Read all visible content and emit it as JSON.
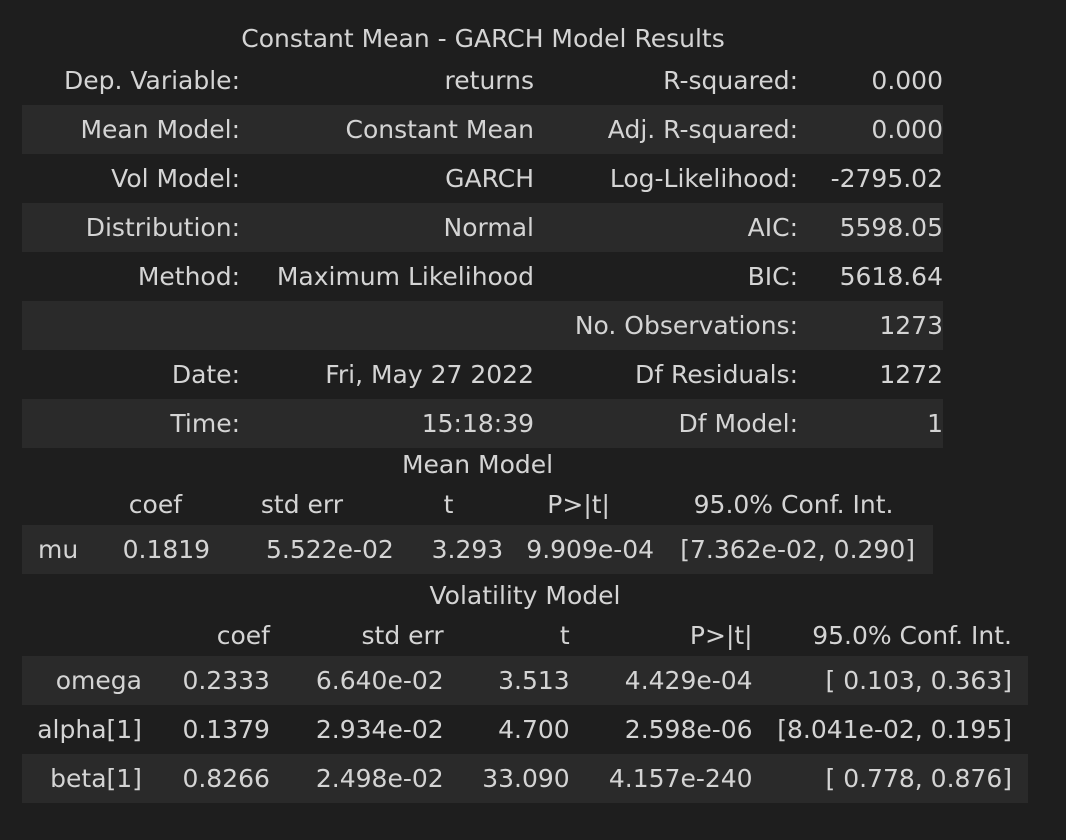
{
  "title": "Constant Mean - GARCH Model Results",
  "summary": {
    "rows": [
      {
        "k1": "Dep. Variable:",
        "v1": "returns",
        "k2": "R-squared:",
        "v2": "0.000"
      },
      {
        "k1": "Mean Model:",
        "v1": "Constant Mean",
        "k2": "Adj. R-squared:",
        "v2": "0.000"
      },
      {
        "k1": "Vol Model:",
        "v1": "GARCH",
        "k2": "Log-Likelihood:",
        "v2": "-2795.02"
      },
      {
        "k1": "Distribution:",
        "v1": "Normal",
        "k2": "AIC:",
        "v2": "5598.05"
      },
      {
        "k1": "Method:",
        "v1": "Maximum Likelihood",
        "k2": "BIC:",
        "v2": "5618.64"
      },
      {
        "k1": "",
        "v1": "",
        "k2": "No. Observations:",
        "v2": "1273"
      },
      {
        "k1": "Date:",
        "v1": "Fri, May 27 2022",
        "k2": "Df Residuals:",
        "v2": "1272"
      },
      {
        "k1": "Time:",
        "v1": "15:18:39",
        "k2": "Df Model:",
        "v2": "1"
      }
    ]
  },
  "mean_model": {
    "caption": "Mean Model",
    "headers": [
      "",
      "coef",
      "std err",
      "t",
      "P>|t|",
      "95.0% Conf. Int."
    ],
    "rows": [
      [
        "mu",
        "0.1819",
        "5.522e-02",
        "3.293",
        "9.909e-04",
        "[7.362e-02, 0.290]"
      ]
    ]
  },
  "vol_model": {
    "caption": "Volatility Model",
    "headers": [
      "",
      "coef",
      "std err",
      "t",
      "P>|t|",
      "95.0% Conf. Int."
    ],
    "rows": [
      [
        "omega",
        "0.2333",
        "6.640e-02",
        "3.513",
        "4.429e-04",
        "[ 0.103, 0.363]"
      ],
      [
        "alpha[1]",
        "0.1379",
        "2.934e-02",
        "4.700",
        "2.598e-06",
        "[8.041e-02, 0.195]"
      ],
      [
        "beta[1]",
        "0.8266",
        "2.498e-02",
        "33.090",
        "4.157e-240",
        "[ 0.778, 0.876]"
      ]
    ]
  }
}
